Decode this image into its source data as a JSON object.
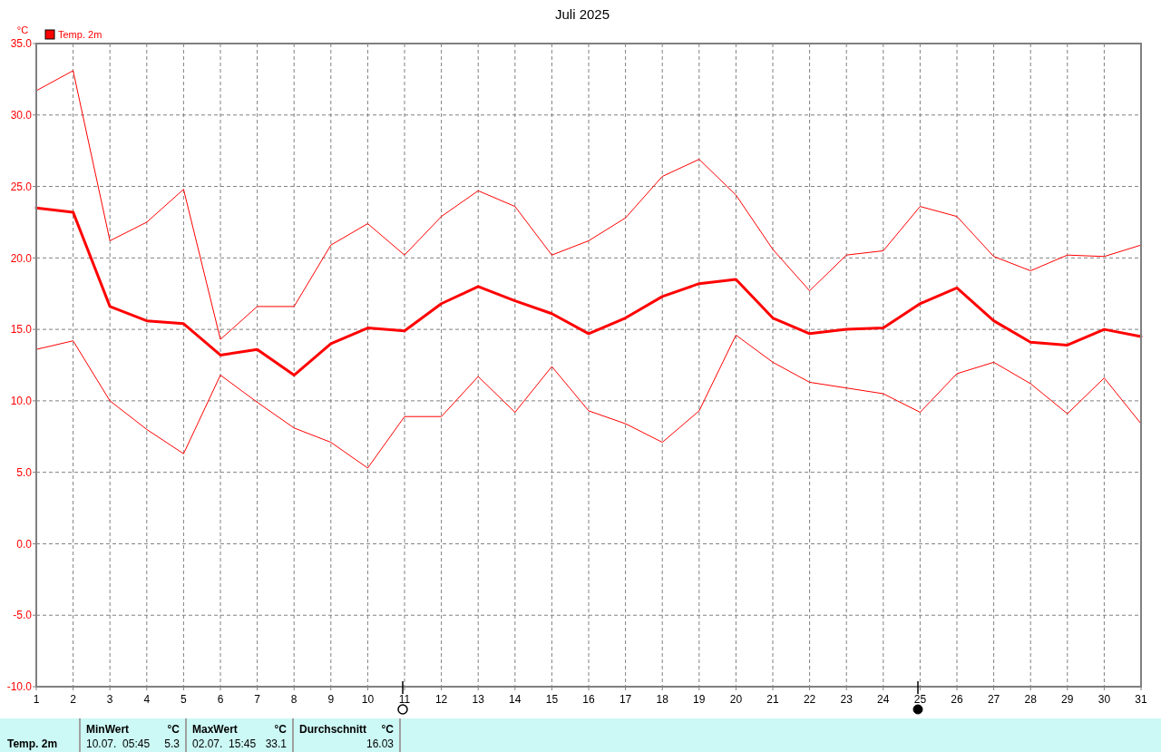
{
  "chart_data": {
    "type": "line",
    "title": "Juli 2025",
    "ylabel": "°C",
    "x": [
      1,
      2,
      3,
      4,
      5,
      6,
      7,
      8,
      9,
      10,
      11,
      12,
      13,
      14,
      15,
      16,
      17,
      18,
      19,
      20,
      21,
      22,
      23,
      24,
      25,
      26,
      27,
      28,
      29,
      30,
      31
    ],
    "xlim": [
      1,
      31
    ],
    "xticks": [
      1,
      2,
      3,
      4,
      5,
      6,
      7,
      8,
      9,
      10,
      11,
      12,
      13,
      14,
      15,
      16,
      17,
      18,
      19,
      20,
      21,
      22,
      23,
      24,
      25,
      26,
      27,
      28,
      29,
      30,
      31
    ],
    "ylim": [
      -10,
      35
    ],
    "yticks": [
      {
        "value": -10,
        "label": "-10.0"
      },
      {
        "value": -5,
        "label": "-5.0"
      },
      {
        "value": 0,
        "label": "0.0"
      },
      {
        "value": 5,
        "label": "5.0"
      },
      {
        "value": 10,
        "label": "10.0"
      },
      {
        "value": 15,
        "label": "15.0"
      },
      {
        "value": 20,
        "label": "20.0"
      },
      {
        "value": 25,
        "label": "25.0"
      },
      {
        "value": 30,
        "label": "30.0"
      },
      {
        "value": 35,
        "label": "35.0"
      }
    ],
    "grid": true,
    "legend": "top left",
    "series": [
      {
        "name": "Temp. 2m",
        "color": "#ff0000",
        "values": [
          23.5,
          23.2,
          16.6,
          15.6,
          15.4,
          13.2,
          13.6,
          11.8,
          14.0,
          15.1,
          14.9,
          16.8,
          18.0,
          17.0,
          16.1,
          14.7,
          15.8,
          17.3,
          18.2,
          18.5,
          15.8,
          14.7,
          15.0,
          15.1,
          16.8,
          17.9,
          15.6,
          14.1,
          13.9,
          15.0,
          14.5
        ]
      },
      {
        "color": "#ff0000",
        "values": [
          31.7,
          33.1,
          21.2,
          22.5,
          24.8,
          14.3,
          16.6,
          16.6,
          20.9,
          22.4,
          20.2,
          22.9,
          24.7,
          23.6,
          20.2,
          21.2,
          22.8,
          25.7,
          26.9,
          24.4,
          20.6,
          17.7,
          20.2,
          20.5,
          23.6,
          22.9,
          20.1,
          19.1,
          20.2,
          20.1,
          20.9
        ]
      },
      {
        "color": "#ff0000",
        "values": [
          13.6,
          14.2,
          10.0,
          8.0,
          6.3,
          11.8,
          9.9,
          8.1,
          7.1,
          5.3,
          8.9,
          8.9,
          11.7,
          9.2,
          12.4,
          9.3,
          8.4,
          7.1,
          9.3,
          14.6,
          12.7,
          11.3,
          10.9,
          10.5,
          9.2,
          11.9,
          12.7,
          11.2,
          9.1,
          11.6,
          8.4
        ]
      }
    ],
    "annotations": [
      "Temp. 2m",
      "MinWert",
      "°C",
      "10.07.  05:45",
      "5.3",
      "MaxWert",
      "°C",
      "02.07.  15:45",
      "33.1",
      "Durchschnitt",
      "°C",
      "16.03"
    ]
  }
}
